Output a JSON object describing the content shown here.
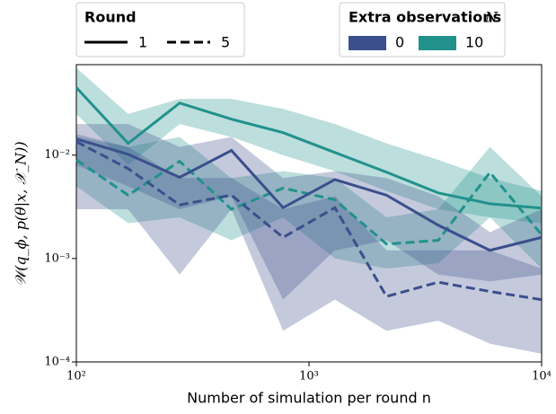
{
  "chart_data": {
    "type": "line",
    "log_x": true,
    "log_y": true,
    "xlabel": "Number of simulation per round n",
    "ylabel": "𝒲(q_ϕ, p(θ|x, 𝒳_N))",
    "x": [
      100,
      167,
      278,
      464,
      774,
      1292,
      2154,
      3594,
      5995,
      10000
    ],
    "xlim": [
      100,
      10000
    ],
    "xticks": [
      {
        "value": 100,
        "label": "10²"
      },
      {
        "value": 1000,
        "label": "10³"
      },
      {
        "value": 10000,
        "label": "10⁴"
      }
    ],
    "ylim": [
      0.0001,
      0.075
    ],
    "yticks": [
      {
        "value": 0.0001,
        "label": "10⁻⁴"
      },
      {
        "value": 0.001,
        "label": "10⁻³"
      },
      {
        "value": 0.01,
        "label": "10⁻²"
      }
    ],
    "series": [
      {
        "color": "#21918c",
        "dash": false,
        "values": [
          0.045,
          0.013,
          0.0319,
          0.0223,
          0.0165,
          0.0106,
          0.00684,
          0.00431,
          0.00339,
          0.00307
        ],
        "band_lower": [
          0.025,
          0.008,
          0.02,
          0.015,
          0.01,
          0.007,
          0.0045,
          0.003,
          0.0025,
          0.0022
        ],
        "band_upper": [
          0.07,
          0.025,
          0.035,
          0.035,
          0.028,
          0.02,
          0.013,
          0.009,
          0.006,
          0.0045
        ]
      },
      {
        "color": "#21918c",
        "dash": true,
        "values": [
          0.009,
          0.0041,
          0.0087,
          0.003,
          0.0048,
          0.0037,
          0.00138,
          0.0015,
          0.0068,
          0.0017
        ],
        "band_lower": [
          0.005,
          0.0022,
          0.0025,
          0.0015,
          0.0025,
          0.001,
          0.0008,
          0.0009,
          0.0025,
          0.0008
        ],
        "band_upper": [
          0.015,
          0.012,
          0.015,
          0.006,
          0.007,
          0.006,
          0.0025,
          0.003,
          0.012,
          0.004
        ]
      },
      {
        "color": "#3b4f8c",
        "dash": false,
        "values": [
          0.0143,
          0.0102,
          0.0061,
          0.0111,
          0.0031,
          0.0058,
          0.0041,
          0.0021,
          0.0012,
          0.0016
        ],
        "band_lower": [
          0.008,
          0.005,
          0.003,
          0.004,
          0.0004,
          0.0012,
          0.0015,
          0.0007,
          0.0006,
          0.0007
        ],
        "band_upper": [
          0.02,
          0.02,
          0.012,
          0.015,
          0.006,
          0.007,
          0.006,
          0.004,
          0.0018,
          0.003
        ]
      },
      {
        "color": "#3b4f8c",
        "dash": true,
        "values": [
          0.0135,
          0.0074,
          0.0033,
          0.0041,
          0.0016,
          0.0031,
          0.00043,
          0.00059,
          0.00048,
          0.0004
        ],
        "band_lower": [
          0.003,
          0.003,
          0.0007,
          0.003,
          0.0002,
          0.0004,
          0.0002,
          0.00025,
          0.00015,
          0.00012
        ],
        "band_upper": [
          0.016,
          0.012,
          0.006,
          0.006,
          0.003,
          0.004,
          0.0012,
          0.0012,
          0.0012,
          0.0008
        ]
      }
    ],
    "legend_round": {
      "title": "Round",
      "entries": [
        {
          "label": "1",
          "dash": false
        },
        {
          "label": "5",
          "dash": true
        }
      ]
    },
    "legend_n": {
      "title": "Extra observations",
      "symbol": "N",
      "entries": [
        {
          "label": "0",
          "color": "#3b4f8c"
        },
        {
          "label": "10",
          "color": "#21918c"
        }
      ]
    }
  }
}
